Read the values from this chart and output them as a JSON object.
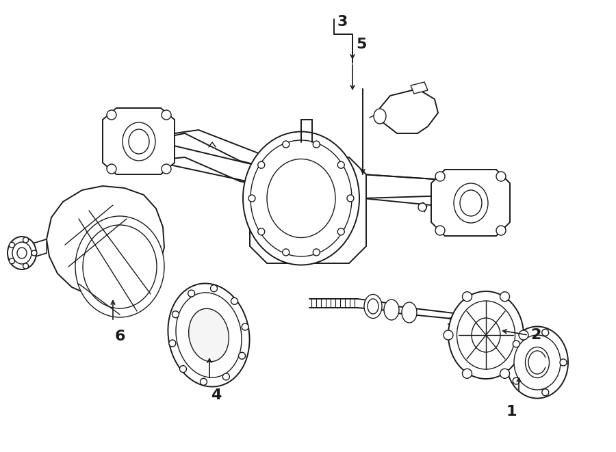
{
  "bg_color": "#ffffff",
  "line_color": "#1a1a1a",
  "figsize": [
    9.0,
    6.61
  ],
  "dpi": 100,
  "label_fontsize": 16,
  "lw_main": 1.4,
  "lw_thin": 1.0
}
